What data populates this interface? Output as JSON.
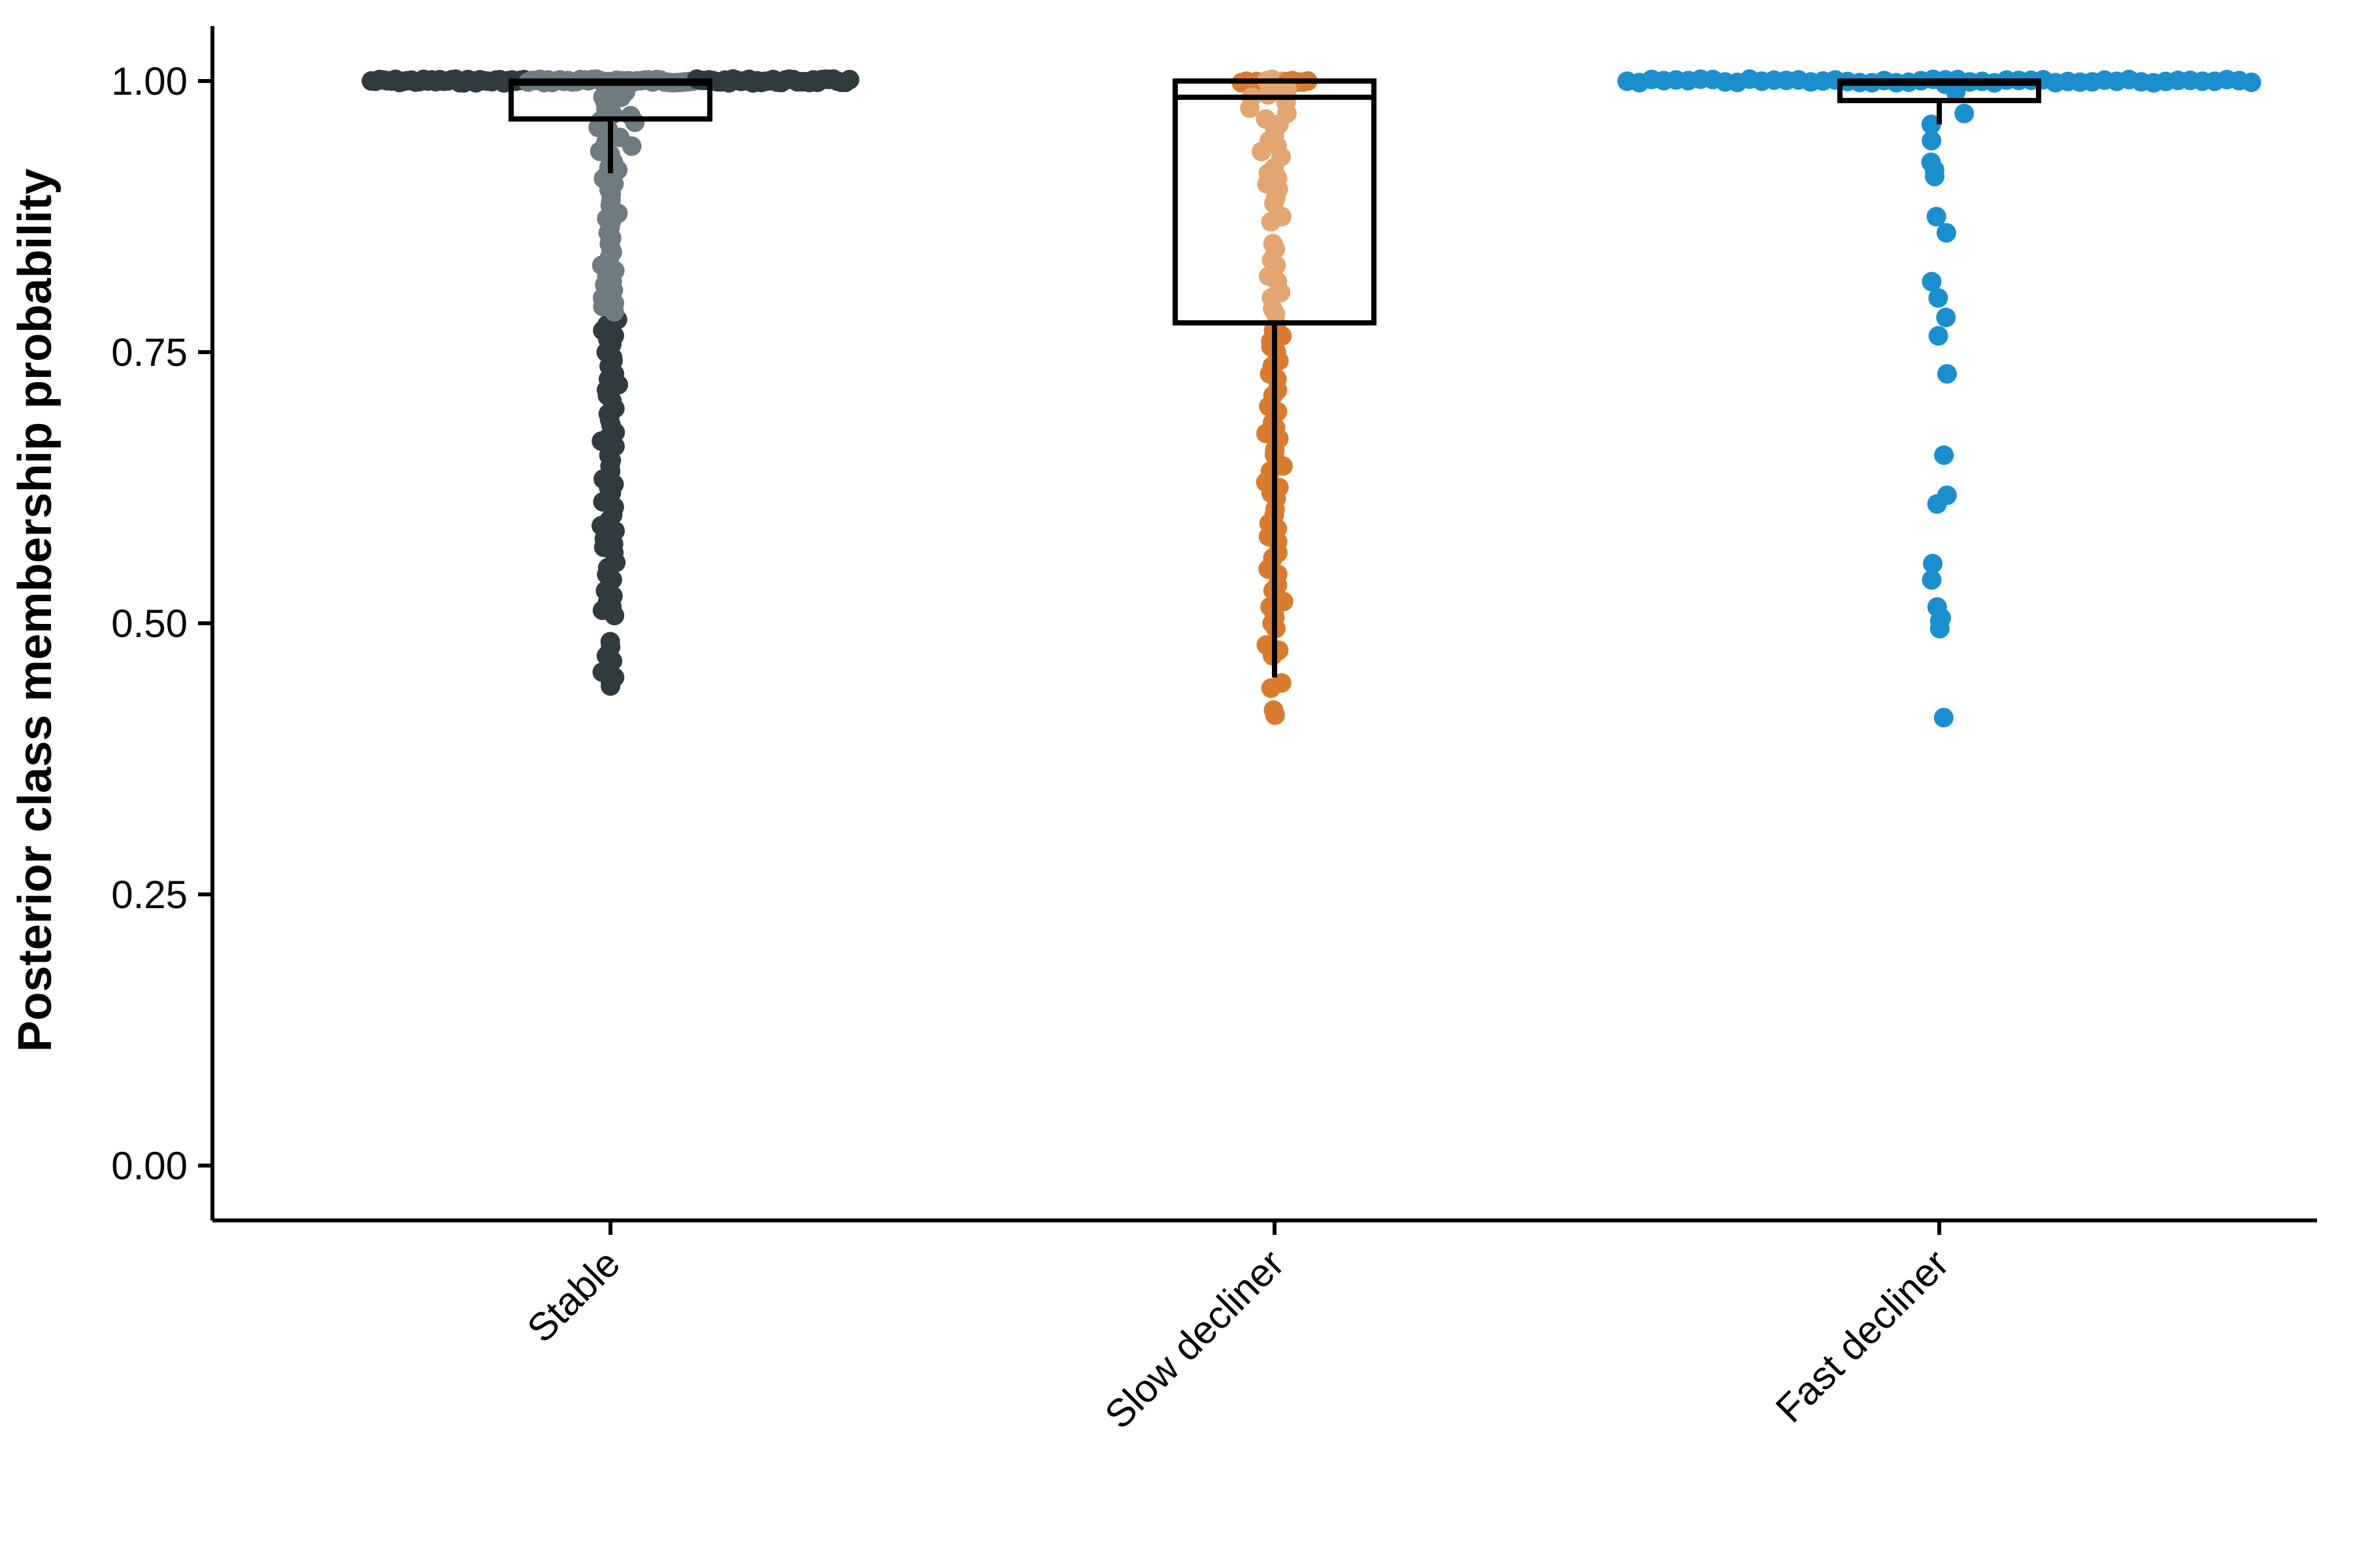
{
  "chart_data": {
    "type": "boxplot",
    "ylabel": "Posterior class membership probability",
    "xlabel": "",
    "ylim": [
      0,
      1
    ],
    "y_ticks": [
      "0.00",
      "0.25",
      "0.50",
      "0.75",
      "1.00"
    ],
    "categories": [
      "Stable",
      "Slow decliner",
      "Fast decliner"
    ],
    "grid": false,
    "legend": "none",
    "boxes": [
      {
        "category": "Stable",
        "q1": 0.965,
        "median": 0.998,
        "q3": 1.0,
        "whisker_low": 0.915,
        "whisker_high": 1.0
      },
      {
        "category": "Slow decliner",
        "q1": 0.777,
        "median": 0.985,
        "q3": 1.0,
        "whisker_low": 0.45,
        "whisker_high": 1.0
      },
      {
        "category": "Fast decliner",
        "q1": 0.982,
        "median": 0.998,
        "q3": 1.0,
        "whisker_low": 0.96,
        "whisker_high": 1.0
      }
    ],
    "series": [
      {
        "category": "Stable",
        "colors": [
          "#2f3b3f",
          "#6e7b80"
        ],
        "stats": {
          "n_at_top": 120,
          "top_half_width": 0.36
        },
        "values": [
          0.447,
          0.455,
          0.47,
          0.483,
          0.512,
          0.52,
          0.53,
          0.545,
          0.556,
          0.57,
          0.578,
          0.59,
          0.6,
          0.612,
          0.625,
          0.633,
          0.645,
          0.655,
          0.668,
          0.676,
          0.688,
          0.698,
          0.71,
          0.72,
          0.73,
          0.742,
          0.75,
          0.762,
          0.77,
          0.78,
          0.792,
          0.8,
          0.812,
          0.82,
          0.83,
          0.842,
          0.85,
          0.86,
          0.87,
          0.878,
          0.89,
          0.9,
          0.91,
          0.918,
          0.925,
          0.932,
          0.94,
          0.948,
          0.955,
          0.962,
          0.968,
          0.974,
          0.98,
          0.985,
          0.99
        ]
      },
      {
        "category": "Slow decliner",
        "colors": [
          "#d97b2f",
          "#e3a571"
        ],
        "stats": {
          "n_at_top": 14,
          "top_half_width": 0.05
        },
        "values": [
          0.42,
          0.445,
          0.475,
          0.48,
          0.5,
          0.51,
          0.52,
          0.535,
          0.55,
          0.565,
          0.58,
          0.592,
          0.605,
          0.62,
          0.63,
          0.645,
          0.66,
          0.675,
          0.685,
          0.7,
          0.715,
          0.73,
          0.742,
          0.755,
          0.765,
          0.775,
          0.79,
          0.805,
          0.82,
          0.835,
          0.85,
          0.875,
          0.892,
          0.905,
          0.915,
          0.92,
          0.935,
          0.945,
          0.955,
          0.965,
          0.975,
          0.985,
          0.992,
          0.996
        ]
      },
      {
        "category": "Fast decliner",
        "colors": [
          "#1b8fce",
          "#1b8fce"
        ],
        "stats": {
          "n_at_top": 52,
          "top_half_width": 0.47
        },
        "values": [
          0.413,
          0.495,
          0.502,
          0.505,
          0.515,
          0.54,
          0.555,
          0.61,
          0.618,
          0.655,
          0.73,
          0.765,
          0.782,
          0.8,
          0.815,
          0.86,
          0.875,
          0.912,
          0.918,
          0.925,
          0.945,
          0.96,
          0.97,
          0.99,
          0.997
        ]
      }
    ]
  }
}
